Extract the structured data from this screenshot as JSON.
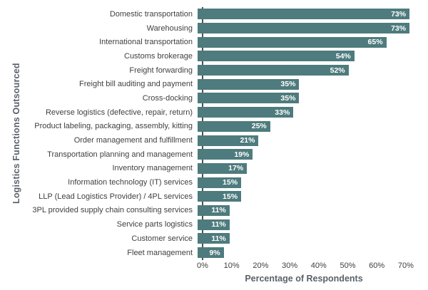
{
  "chart_data": {
    "type": "bar",
    "orientation": "horizontal",
    "xlabel": "Percentage of Respondents",
    "ylabel": "Logistics Functions Outsourced",
    "categories": [
      "Domestic transportation",
      "Warehousing",
      "International transportation",
      "Customs brokerage",
      "Freight forwarding",
      "Freight bill auditing and payment",
      "Cross-docking",
      "Reverse logistics (defective, repair, return)",
      "Product labeling, packaging, assembly, kitting",
      "Order management and fulfillment",
      "Transportation planning and management",
      "Inventory management",
      "Information technology (IT) services",
      "LLP (Lead Logistics Provider) / 4PL services",
      "3PL provided supply chain consulting services",
      "Service parts logistics",
      "Customer service",
      "Fleet management"
    ],
    "values": [
      73,
      73,
      65,
      54,
      52,
      35,
      35,
      33,
      25,
      21,
      19,
      17,
      15,
      15,
      11,
      11,
      11,
      9
    ],
    "value_labels": [
      "73%",
      "73%",
      "65%",
      "54%",
      "52%",
      "35%",
      "35%",
      "33%",
      "25%",
      "21%",
      "19%",
      "17%",
      "15%",
      "15%",
      "11%",
      "11%",
      "11%",
      "9%"
    ],
    "x_ticks": [
      "0%",
      "10%",
      "20%",
      "30%",
      "40%",
      "50%",
      "60%",
      "70%"
    ],
    "xlim": [
      0,
      77
    ],
    "grid": false,
    "legend": false,
    "colors": {
      "bar": "#4e7b7d",
      "value_label": "#ffffff",
      "category_text": "#3f3f3f",
      "tick_text": "#3f3f3f",
      "axis_title": "#5a6169",
      "axis_line": "#4f4f4f"
    }
  }
}
